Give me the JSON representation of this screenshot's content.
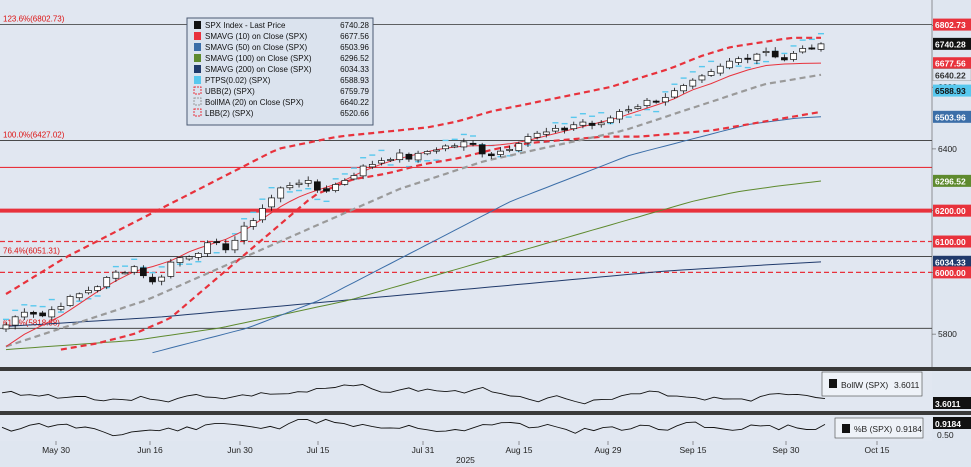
{
  "chart_data": {
    "type": "candlestick",
    "title": "",
    "year_label": "2025",
    "date_ticks": [
      "May 30",
      "Jun 16",
      "Jun 30",
      "Jul 15",
      "Jul 31",
      "Aug 15",
      "Aug 29",
      "Sep 15",
      "Sep 30",
      "Oct 15"
    ],
    "price_ticks": [
      5800,
      6000,
      6200,
      6400,
      6600,
      6800
    ],
    "ylim": [
      5700,
      6850
    ],
    "legend": [
      {
        "label": "SPX Index - Last Price",
        "value": "6740.28",
        "color": "#111111",
        "style": "candle"
      },
      {
        "label": "SMAVG (10)  on Close (SPX)",
        "value": "6677.56",
        "color": "#e8323c",
        "style": "solid"
      },
      {
        "label": "SMAVG (50)  on Close (SPX)",
        "value": "6503.96",
        "color": "#3b6ea8",
        "style": "solid"
      },
      {
        "label": "SMAVG (100)  on Close (SPX)",
        "value": "6296.52",
        "color": "#5e8a2e",
        "style": "solid"
      },
      {
        "label": "SMAVG (200)  on Close (SPX)",
        "value": "6034.33",
        "color": "#203a6b",
        "style": "solid"
      },
      {
        "label": "PTPS(0.02) (SPX)",
        "value": "6588.93",
        "color": "#58c8ee",
        "style": "solid"
      },
      {
        "label": "UBB(2) (SPX)",
        "value": "6759.79",
        "color": "#e8323c",
        "style": "dashbox"
      },
      {
        "label": "BollMA (20)  on Close (SPX)",
        "value": "6640.22",
        "color": "#999999",
        "style": "dashbox"
      },
      {
        "label": "LBB(2) (SPX)",
        "value": "6520.66",
        "color": "#e8323c",
        "style": "dashbox"
      }
    ],
    "fib_labels": [
      {
        "text": "123.6%(6802.73)",
        "y": 6802.73
      },
      {
        "text": "100.0%(6427.02)",
        "y": 6427.02
      },
      {
        "text": "76.4%(6051.31)",
        "y": 6051.31
      },
      {
        "text": "61.8%(5818.88)",
        "y": 5818.88
      }
    ],
    "hlines": [
      {
        "y": 6802.73,
        "color": "#333333",
        "style": "solid",
        "width": 0.8
      },
      {
        "y": 6427.02,
        "color": "#333333",
        "style": "solid",
        "width": 0.8
      },
      {
        "y": 6340,
        "color": "#e8323c",
        "style": "solid",
        "width": 1.2
      },
      {
        "y": 6200,
        "color": "#e8323c",
        "style": "solid",
        "width": 4
      },
      {
        "y": 6100,
        "color": "#e8323c",
        "style": "dash",
        "width": 1.2
      },
      {
        "y": 6051.31,
        "color": "#333333",
        "style": "solid",
        "width": 0.8
      },
      {
        "y": 6000,
        "color": "#e8323c",
        "style": "dash",
        "width": 1.2
      },
      {
        "y": 5818.88,
        "color": "#333333",
        "style": "solid",
        "width": 0.8
      }
    ],
    "right_labels": [
      {
        "text": "6802.73",
        "y": 6802.73,
        "bg": "#e8323c",
        "fg": "#ffffff"
      },
      {
        "text": "6740.28",
        "y": 6740.28,
        "bg": "#111111",
        "fg": "#ffffff"
      },
      {
        "text": "6677.56",
        "y": 6677.56,
        "bg": "#e8323c",
        "fg": "#ffffff"
      },
      {
        "text": "6640.22",
        "y": 6640.22,
        "bg": "#dfe6f0",
        "fg": "#333333"
      },
      {
        "text": "6588.93",
        "y": 6588.93,
        "bg": "#58c8ee",
        "fg": "#111111"
      },
      {
        "text": "6503.96",
        "y": 6503.96,
        "bg": "#3b6ea8",
        "fg": "#ffffff"
      },
      {
        "text": "6296.52",
        "y": 6296.52,
        "bg": "#5e8a2e",
        "fg": "#ffffff"
      },
      {
        "text": "6200.00",
        "y": 6200,
        "bg": "#e8323c",
        "fg": "#ffffff"
      },
      {
        "text": "6100.00",
        "y": 6100,
        "bg": "#e8323c",
        "fg": "#ffffff"
      },
      {
        "text": "6034.33",
        "y": 6034.33,
        "bg": "#203a6b",
        "fg": "#ffffff"
      },
      {
        "text": "6000.00",
        "y": 6000,
        "bg": "#e8323c",
        "fg": "#ffffff"
      }
    ],
    "anchors": {
      "close": [
        5830,
        5880,
        5860,
        5900,
        5930,
        5960,
        6000,
        6020,
        5960,
        6040,
        6060,
        6090,
        6080,
        6150,
        6220,
        6280,
        6300,
        6260,
        6290,
        6330,
        6360,
        6380,
        6370,
        6400,
        6410,
        6420,
        6380,
        6400,
        6440,
        6450,
        6460,
        6490,
        6470,
        6520,
        6540,
        6560,
        6580,
        6610,
        6640,
        6680,
        6700,
        6720,
        6690,
        6720,
        6740
      ],
      "sma10": [
        5760,
        5800,
        5830,
        5860,
        5900,
        5940,
        5975,
        6005,
        6020,
        6040,
        6070,
        6090,
        6110,
        6140,
        6180,
        6220,
        6250,
        6270,
        6290,
        6320,
        6345,
        6365,
        6380,
        6395,
        6405,
        6410,
        6410,
        6415,
        6425,
        6440,
        6455,
        6470,
        6485,
        6500,
        6520,
        6540,
        6560,
        6590,
        6610,
        6635,
        6655,
        6670,
        6675,
        6677,
        6678
      ],
      "sma50": [
        5740,
        5760,
        5780,
        5800,
        5820,
        5850,
        5880,
        5910,
        5950,
        5990,
        6030,
        6070,
        6110,
        6150,
        6190,
        6230,
        6260,
        6290,
        6320,
        6350,
        6380,
        6400,
        6420,
        6440,
        6460,
        6480,
        6490,
        6500,
        6504
      ],
      "sma100": [
        5750,
        5760,
        5770,
        5780,
        5800,
        5820,
        5850,
        5880,
        5910,
        5950,
        5990,
        6030,
        6070,
        6110,
        6150,
        6190,
        6230,
        6260,
        6280,
        6296
      ],
      "sma200": [
        5825,
        5835,
        5845,
        5855,
        5870,
        5885,
        5900,
        5915,
        5930,
        5945,
        5960,
        5975,
        5990,
        6005,
        6015,
        6025,
        6034
      ],
      "bollma": [
        5760,
        5790,
        5820,
        5850,
        5880,
        5910,
        5950,
        5990,
        6030,
        6070,
        6110,
        6150,
        6190,
        6230,
        6270,
        6300,
        6330,
        6360,
        6380,
        6400,
        6420,
        6440,
        6460,
        6490,
        6520,
        6550,
        6580,
        6610,
        6625,
        6640
      ],
      "ubb": [
        5930,
        5990,
        6050,
        6100,
        6150,
        6200,
        6250,
        6300,
        6350,
        6400,
        6420,
        6440,
        6450,
        6460,
        6470,
        6490,
        6520,
        6540,
        6560,
        6580,
        6600,
        6630,
        6660,
        6700,
        6730,
        6745,
        6760,
        6760
      ],
      "lbb": [
        5750,
        5770,
        5800,
        5850,
        5950,
        6050,
        6150,
        6250,
        6300,
        6320,
        6350,
        6370,
        6400,
        6420,
        6430,
        6440,
        6440,
        6450,
        6460,
        6480,
        6500,
        6520
      ]
    },
    "sub_bollw": {
      "label": "BollW (SPX)",
      "value": "3.6011"
    },
    "sub_pctb": {
      "label": "%B (SPX)",
      "value": "0.9184",
      "tick": "0.50"
    }
  }
}
